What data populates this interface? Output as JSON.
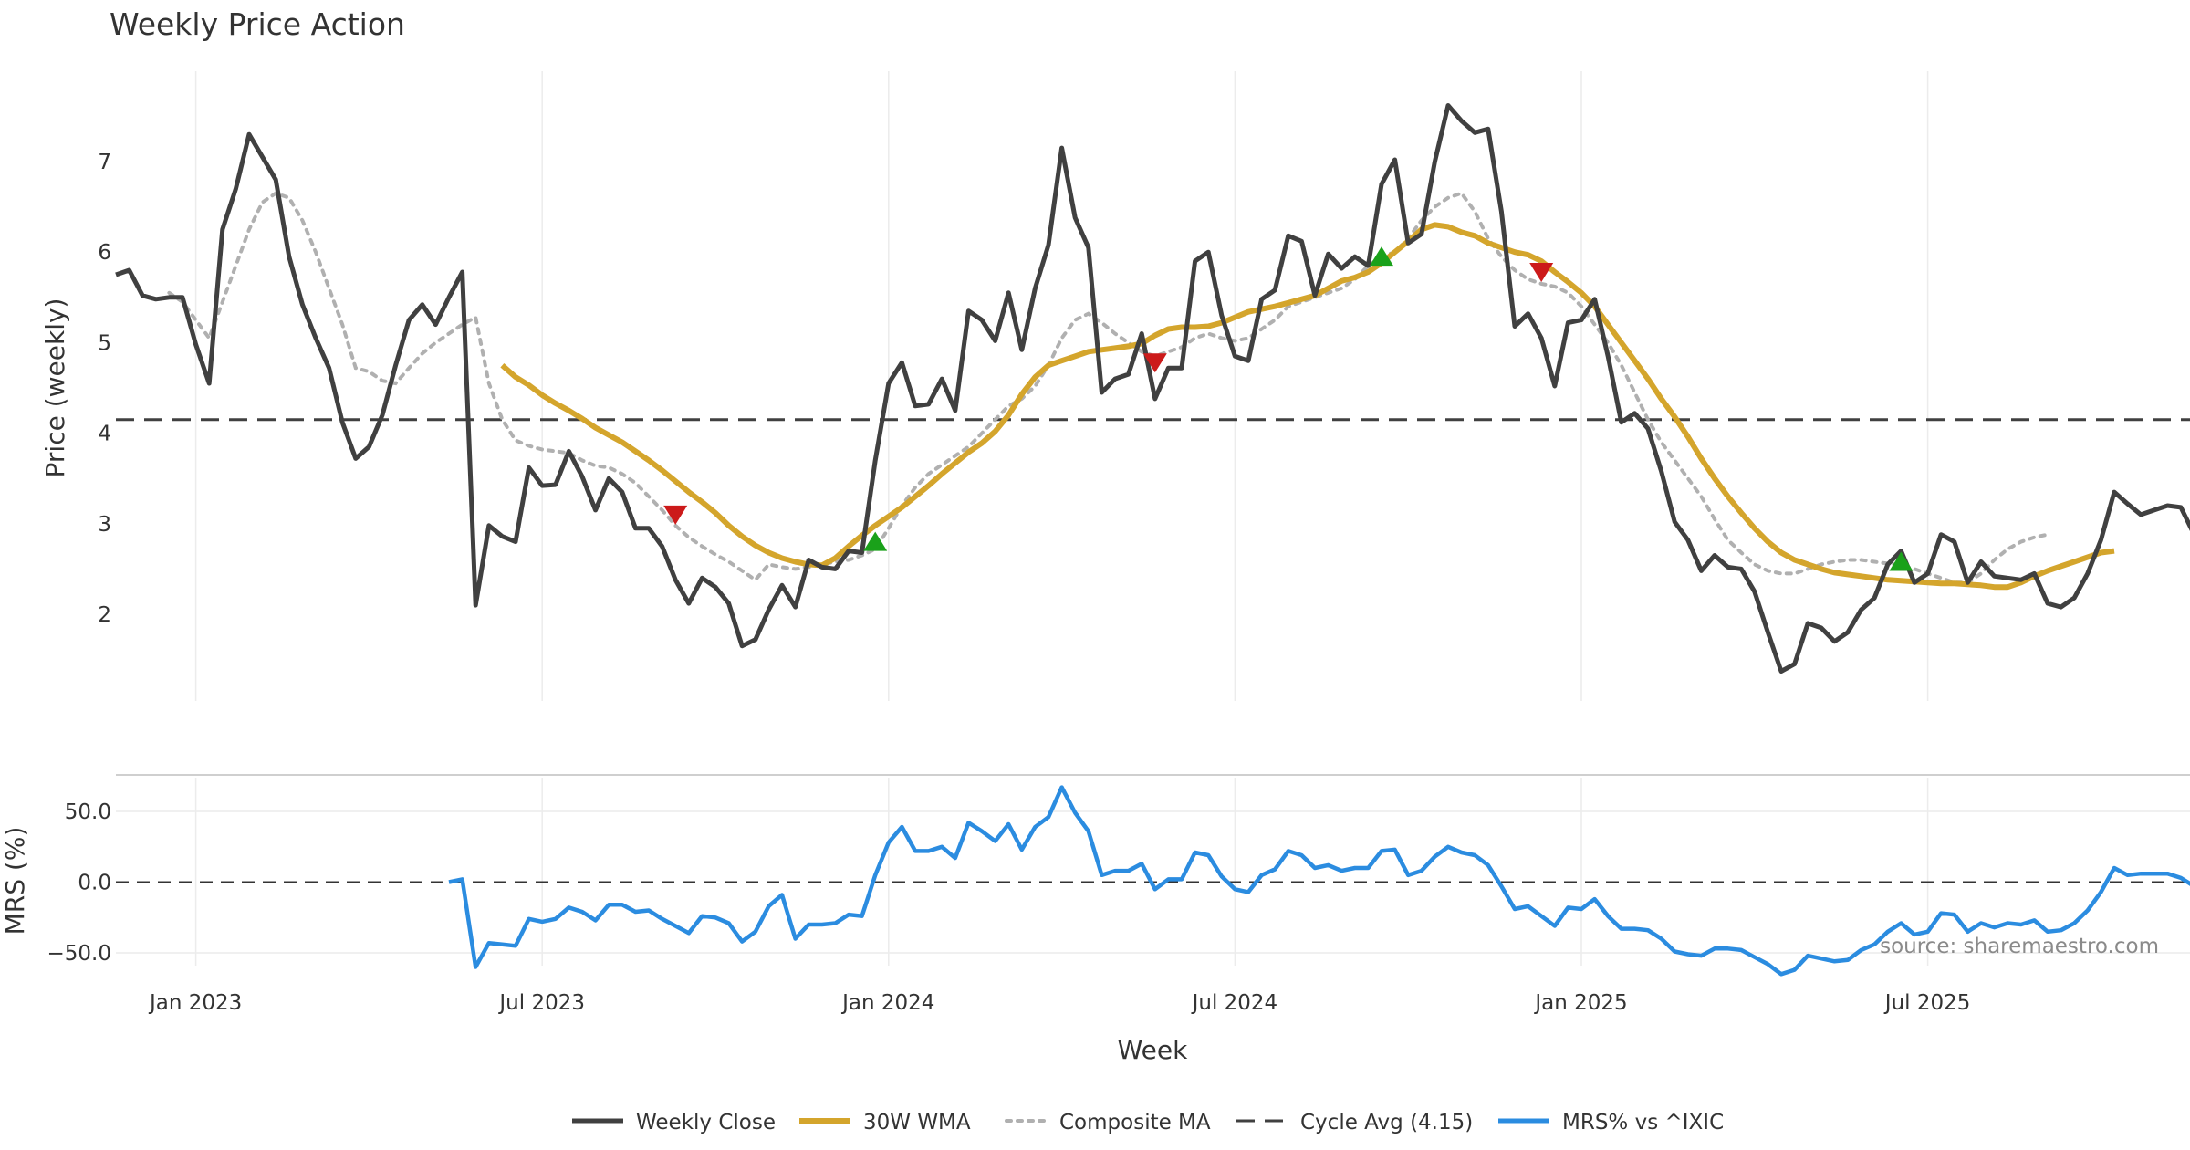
{
  "chart_data": {
    "type": "line",
    "title": "Weekly Price Action",
    "xlabel": "Week",
    "ylabel_price": "Price (weekly)",
    "ylabel_mrs": "MRS (%)",
    "source": "source: sharemaestro.com",
    "price_ylim": [
      1.0,
      8.0
    ],
    "mrs_ylim": [
      -70,
      80
    ],
    "price_ticks": [
      2,
      3,
      4,
      5,
      6,
      7
    ],
    "mrs_ticks": [
      50,
      0,
      -50
    ],
    "mrs_tick_labels": [
      "50.0",
      "0.0",
      "−50.0"
    ],
    "x_ticks": [
      {
        "week": 6,
        "label": "Jan 2023"
      },
      {
        "week": 32,
        "label": "Jul 2023"
      },
      {
        "week": 58,
        "label": "Jan 2024"
      },
      {
        "week": 84,
        "label": "Jul 2024"
      },
      {
        "week": 110,
        "label": "Jan 2025"
      },
      {
        "week": 136,
        "label": "Jul 2025"
      }
    ],
    "cycle_avg": 4.15,
    "legend": [
      "Weekly Close",
      "30W WMA",
      "Composite MA",
      "Cycle Avg (4.15)",
      "MRS% vs ^IXIC"
    ],
    "colors": {
      "close": "#404040",
      "wma": "#d4a52c",
      "composite": "#b0b0b0",
      "cycle": "#404040",
      "mrs": "#2b8ce0",
      "buy": "#1aa11a",
      "sell": "#cc1a1a",
      "grid": "#ececec"
    },
    "series": [
      {
        "name": "Weekly Close",
        "start_week": 0,
        "values": [
          5.75,
          5.8,
          5.52,
          5.48,
          5.5,
          5.5,
          4.98,
          4.55,
          6.25,
          6.7,
          7.3,
          7.05,
          6.8,
          5.95,
          5.42,
          5.05,
          4.72,
          4.12,
          3.72,
          3.85,
          4.2,
          4.75,
          5.25,
          5.42,
          5.2,
          5.5,
          5.78,
          2.1,
          2.98,
          2.86,
          2.8,
          3.62,
          3.42,
          3.43,
          3.8,
          3.52,
          3.15,
          3.5,
          3.35,
          2.95,
          2.95,
          2.75,
          2.38,
          2.12,
          2.4,
          2.3,
          2.12,
          1.65,
          1.72,
          2.05,
          2.32,
          2.08,
          2.6,
          2.52,
          2.5,
          2.7,
          2.68,
          3.7,
          4.55,
          4.78,
          4.3,
          4.32,
          4.6,
          4.25,
          5.35,
          5.25,
          5.02,
          5.55,
          4.92,
          5.6,
          6.08,
          7.15,
          6.38,
          6.05,
          4.45,
          4.6,
          4.65,
          5.1,
          4.38,
          4.72,
          4.72,
          5.9,
          6.0,
          5.3,
          4.85,
          4.8,
          5.48,
          5.58,
          6.18,
          6.12,
          5.52,
          5.98,
          5.82,
          5.95,
          5.85,
          6.75,
          7.02,
          6.1,
          6.2,
          7.0,
          7.62,
          7.45,
          7.32,
          7.36,
          6.45,
          5.18,
          5.32,
          5.05,
          4.52,
          5.22,
          5.25,
          5.48,
          4.85,
          4.12,
          4.22,
          4.05,
          3.58,
          3.02,
          2.82,
          2.48,
          2.65,
          2.52,
          2.5,
          2.25,
          1.8,
          1.37,
          1.45,
          1.9,
          1.85,
          1.7,
          1.8,
          2.05,
          2.18,
          2.55,
          2.7,
          2.35,
          2.45,
          2.88,
          2.8,
          2.35,
          2.58,
          2.42,
          2.4,
          2.38,
          2.45,
          2.12,
          2.08,
          2.18,
          2.45,
          2.82,
          3.35,
          3.22,
          3.1,
          3.15,
          3.2,
          3.18,
          2.88
        ]
      },
      {
        "name": "30W WMA",
        "start_week": 29,
        "values": [
          4.75,
          4.62,
          4.53,
          4.42,
          4.33,
          4.25,
          4.16,
          4.06,
          3.98,
          3.9,
          3.8,
          3.7,
          3.59,
          3.47,
          3.35,
          3.24,
          3.12,
          2.98,
          2.86,
          2.76,
          2.68,
          2.62,
          2.58,
          2.55,
          2.54,
          2.62,
          2.75,
          2.87,
          2.98,
          3.08,
          3.18,
          3.3,
          3.42,
          3.55,
          3.67,
          3.79,
          3.89,
          4.02,
          4.2,
          4.43,
          4.62,
          4.75,
          4.8,
          4.85,
          4.9,
          4.92,
          4.94,
          4.96,
          4.99,
          5.08,
          5.15,
          5.17,
          5.17,
          5.18,
          5.22,
          5.28,
          5.34,
          5.37,
          5.4,
          5.44,
          5.48,
          5.52,
          5.6,
          5.68,
          5.72,
          5.78,
          5.88,
          6.0,
          6.12,
          6.25,
          6.3,
          6.28,
          6.22,
          6.18,
          6.1,
          6.05,
          6.0,
          5.97,
          5.9,
          5.78,
          5.67,
          5.55,
          5.4,
          5.2,
          5.0,
          4.8,
          4.6,
          4.38,
          4.18,
          3.96,
          3.72,
          3.5,
          3.3,
          3.12,
          2.95,
          2.8,
          2.68,
          2.6,
          2.55,
          2.5,
          2.46,
          2.44,
          2.42,
          2.4,
          2.38,
          2.37,
          2.36,
          2.35,
          2.34,
          2.34,
          2.33,
          2.32,
          2.3,
          2.3,
          2.35,
          2.42,
          2.48,
          2.53,
          2.58,
          2.63,
          2.68,
          2.7
        ]
      },
      {
        "name": "Composite MA",
        "start_week": 4,
        "values": [
          5.55,
          5.45,
          5.25,
          5.05,
          5.45,
          5.85,
          6.25,
          6.55,
          6.65,
          6.6,
          6.35,
          6.0,
          5.6,
          5.2,
          4.72,
          4.68,
          4.58,
          4.55,
          4.72,
          4.88,
          5.0,
          5.1,
          5.2,
          5.28,
          4.55,
          4.15,
          3.92,
          3.86,
          3.82,
          3.8,
          3.78,
          3.7,
          3.64,
          3.62,
          3.55,
          3.45,
          3.3,
          3.15,
          2.98,
          2.85,
          2.75,
          2.66,
          2.58,
          2.48,
          2.38,
          2.55,
          2.52,
          2.5,
          2.52,
          2.55,
          2.58,
          2.6,
          2.65,
          2.72,
          2.95,
          3.2,
          3.4,
          3.55,
          3.65,
          3.75,
          3.85,
          4.0,
          4.15,
          4.3,
          4.38,
          4.52,
          4.75,
          5.05,
          5.25,
          5.32,
          5.22,
          5.1,
          5.0,
          4.9,
          4.85,
          4.9,
          4.95,
          5.05,
          5.1,
          5.05,
          5.02,
          5.05,
          5.15,
          5.25,
          5.4,
          5.45,
          5.5,
          5.55,
          5.6,
          5.7,
          5.85,
          5.95,
          6.0,
          6.15,
          6.35,
          6.5,
          6.6,
          6.65,
          6.45,
          6.15,
          5.95,
          5.8,
          5.7,
          5.65,
          5.62,
          5.55,
          5.4,
          5.2,
          5.0,
          4.75,
          4.45,
          4.15,
          3.9,
          3.7,
          3.5,
          3.3,
          3.05,
          2.82,
          2.68,
          2.55,
          2.48,
          2.45,
          2.45,
          2.5,
          2.55,
          2.58,
          2.6,
          2.6,
          2.58,
          2.56,
          2.54,
          2.5,
          2.45,
          2.4,
          2.35,
          2.35,
          2.45,
          2.6,
          2.72,
          2.8,
          2.85,
          2.88
        ]
      },
      {
        "name": "MRS% vs ^IXIC",
        "start_week": 25,
        "values": [
          0,
          2,
          -60,
          -43,
          -44,
          -45,
          -26,
          -28,
          -26,
          -18,
          -21,
          -27,
          -16,
          -16,
          -21,
          -20,
          -26,
          -31,
          -36,
          -24,
          -25,
          -29,
          -42,
          -35,
          -17,
          -9,
          -40,
          -30,
          -30,
          -29,
          -23,
          -24,
          5,
          28,
          39,
          22,
          22,
          25,
          17,
          42,
          36,
          29,
          41,
          23,
          39,
          46,
          67,
          49,
          36,
          5,
          8,
          8,
          13,
          -5,
          2,
          2,
          21,
          19,
          4,
          -5,
          -7,
          5,
          9,
          22,
          19,
          10,
          12,
          8,
          10,
          10,
          22,
          23,
          5,
          8,
          18,
          25,
          21,
          19,
          12,
          -3,
          -19,
          -17,
          -24,
          -31,
          -18,
          -19,
          -12,
          -24,
          -33,
          -33,
          -34,
          -40,
          -49,
          -51,
          -52,
          -47,
          -47,
          -48,
          -53,
          -58,
          -65,
          -62,
          -52,
          -54,
          -56,
          -55,
          -48,
          -44,
          -35,
          -29,
          -37,
          -35,
          -22,
          -23,
          -35,
          -29,
          -32,
          -29,
          -30,
          -27,
          -35,
          -34,
          -29,
          -20,
          -7,
          10,
          5,
          6,
          6,
          6,
          3,
          -3
        ]
      }
    ],
    "signals": [
      {
        "type": "sell",
        "week": 42,
        "value": 3.1
      },
      {
        "type": "buy",
        "week": 57,
        "value": 2.8
      },
      {
        "type": "sell",
        "week": 78,
        "value": 4.78
      },
      {
        "type": "buy",
        "week": 95,
        "value": 5.95
      },
      {
        "type": "sell",
        "week": 107,
        "value": 5.78
      },
      {
        "type": "buy",
        "week": 134,
        "value": 2.58
      }
    ]
  }
}
